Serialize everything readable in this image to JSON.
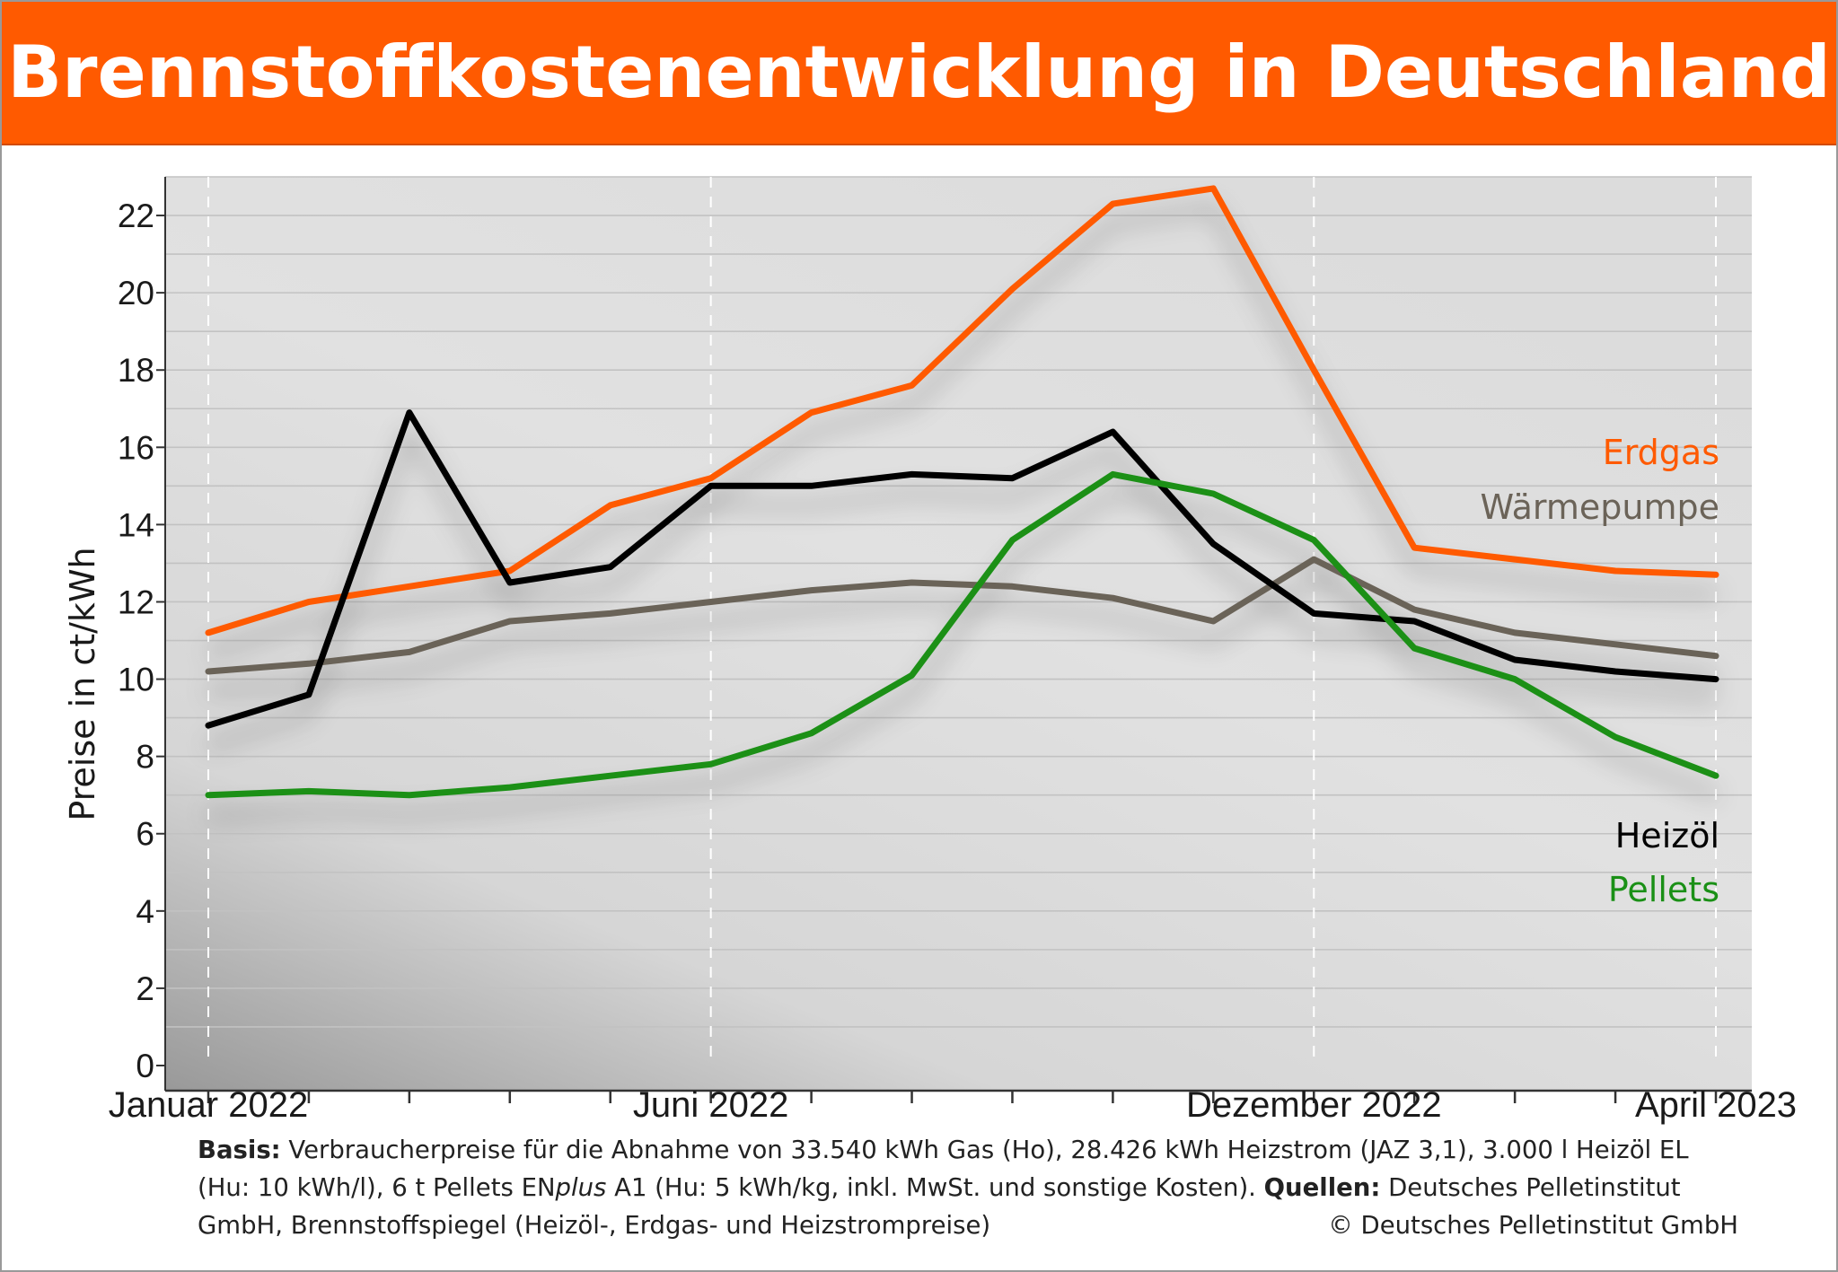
{
  "title": "Brennstoffkostenentwicklung in Deutschland",
  "chart_data": {
    "type": "line",
    "ylabel": "Preise in ct/kWh",
    "ylim": [
      0,
      23
    ],
    "yticks": [
      "0",
      "2",
      "4",
      "6",
      "8",
      "10",
      "12",
      "14",
      "16",
      "18",
      "20",
      "22"
    ],
    "x": [
      "2022-01",
      "2022-02",
      "2022-03",
      "2022-04",
      "2022-05",
      "2022-06",
      "2022-07",
      "2022-08",
      "2022-09",
      "2022-10",
      "2022-11",
      "2022-12",
      "2023-01",
      "2023-02",
      "2023-03",
      "2023-04"
    ],
    "xtick_labels": [
      {
        "index": 0,
        "label": "Januar 2022"
      },
      {
        "index": 5,
        "label": "Juni 2022"
      },
      {
        "index": 11,
        "label": "Dezember 2022"
      },
      {
        "index": 15,
        "label": "April 2023"
      }
    ],
    "grid": true,
    "series": [
      {
        "name": "Erdgas",
        "color": "#ff5a00",
        "values": [
          11.2,
          12.0,
          12.4,
          12.8,
          14.5,
          15.2,
          16.9,
          17.6,
          20.1,
          22.3,
          22.7,
          18.0,
          13.4,
          13.1,
          12.8,
          12.7
        ]
      },
      {
        "name": "Wärmepumpe",
        "color": "#6b6358",
        "values": [
          10.2,
          10.4,
          10.7,
          11.5,
          11.7,
          12.0,
          12.3,
          12.5,
          12.4,
          12.1,
          11.5,
          13.1,
          11.8,
          11.2,
          10.9,
          10.6
        ]
      },
      {
        "name": "Heizöl",
        "color": "#000000",
        "values": [
          8.8,
          9.6,
          16.9,
          12.5,
          12.9,
          15.0,
          15.0,
          15.3,
          15.2,
          16.4,
          13.5,
          11.7,
          11.5,
          10.5,
          10.2,
          10.0
        ]
      },
      {
        "name": "Pellets",
        "color": "#1a9016",
        "values": [
          7.0,
          7.1,
          7.0,
          7.2,
          7.5,
          7.8,
          8.6,
          10.1,
          13.6,
          15.3,
          14.8,
          13.6,
          10.8,
          10.0,
          8.5,
          7.5
        ]
      }
    ]
  },
  "footnote": {
    "line1_bold": "Basis:",
    "line1": " Verbraucherpreise für die Abnahme von 33.540 kWh Gas (Ho), 28.426 kWh Heizstrom (JAZ 3,1), 3.000 l Heizöl EL",
    "line2_a": "(Hu: 10 kWh/l), 6 t Pellets EN",
    "line2_italic": "plus",
    "line2_b": " A1 (Hu: 5 kWh/kg, inkl. MwSt. und sonstige Kosten). ",
    "line2_bold": "Quellen:",
    "line2_c": " Deutsches Pelletinstitut",
    "line3": "GmbH, Brennstoffspiegel (Heizöl-, Erdgas- und Heizstrompreise)",
    "copyright": "© Deutsches Pelletinstitut GmbH"
  }
}
